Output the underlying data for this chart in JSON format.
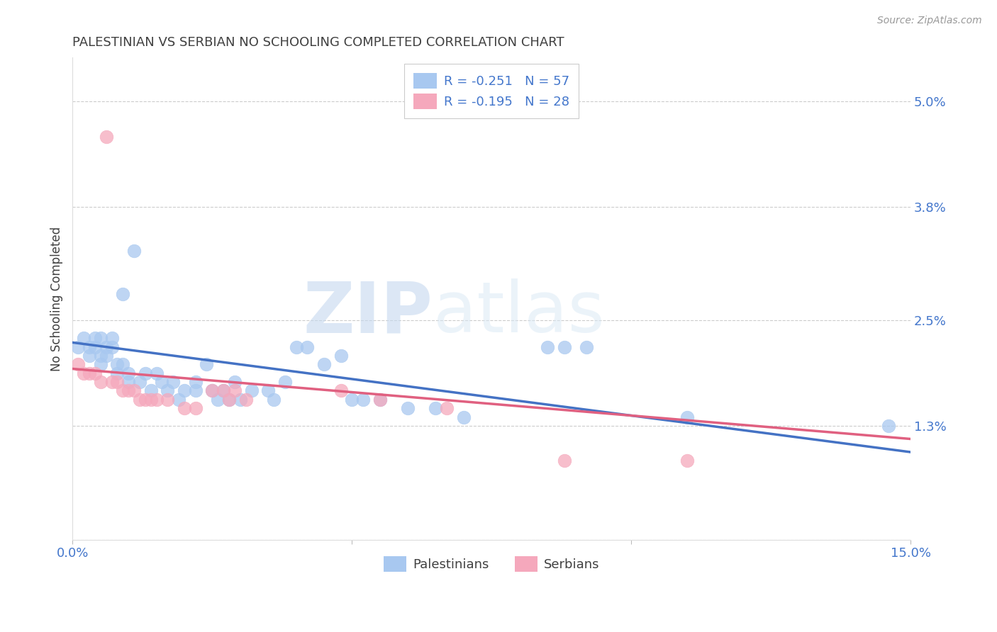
{
  "title": "PALESTINIAN VS SERBIAN NO SCHOOLING COMPLETED CORRELATION CHART",
  "source": "Source: ZipAtlas.com",
  "ylabel": "No Schooling Completed",
  "xlim": [
    0.0,
    0.15
  ],
  "ylim": [
    0.0,
    0.055
  ],
  "xticks": [
    0.0,
    0.05,
    0.1,
    0.15
  ],
  "xtick_labels": [
    "0.0%",
    "",
    "",
    "15.0%"
  ],
  "ytick_vals": [
    0.0,
    0.013,
    0.025,
    0.038,
    0.05
  ],
  "ytick_labels": [
    "",
    "1.3%",
    "2.5%",
    "3.8%",
    "5.0%"
  ],
  "background_color": "#ffffff",
  "grid_color": "#cccccc",
  "watermark_zip": "ZIP",
  "watermark_atlas": "atlas",
  "legend_R_palestinian": "R = -0.251",
  "legend_N_palestinian": "N = 57",
  "legend_R_serbian": "R = -0.195",
  "legend_N_serbian": "N = 28",
  "palestinian_color": "#a8c8f0",
  "serbian_color": "#f5a8bc",
  "line_palestinian_color": "#4472c4",
  "line_serbian_color": "#e06080",
  "title_color": "#404040",
  "axis_label_color": "#404040",
  "tick_color": "#4477cc",
  "legend_text_color": "#4477cc",
  "source_color": "#999999",
  "palestinian_scatter": [
    [
      0.001,
      0.022
    ],
    [
      0.002,
      0.023
    ],
    [
      0.003,
      0.022
    ],
    [
      0.003,
      0.021
    ],
    [
      0.004,
      0.023
    ],
    [
      0.004,
      0.022
    ],
    [
      0.005,
      0.023
    ],
    [
      0.005,
      0.021
    ],
    [
      0.005,
      0.02
    ],
    [
      0.006,
      0.022
    ],
    [
      0.006,
      0.021
    ],
    [
      0.007,
      0.023
    ],
    [
      0.007,
      0.022
    ],
    [
      0.008,
      0.02
    ],
    [
      0.008,
      0.019
    ],
    [
      0.009,
      0.028
    ],
    [
      0.009,
      0.02
    ],
    [
      0.01,
      0.019
    ],
    [
      0.01,
      0.018
    ],
    [
      0.011,
      0.033
    ],
    [
      0.012,
      0.018
    ],
    [
      0.013,
      0.019
    ],
    [
      0.014,
      0.017
    ],
    [
      0.015,
      0.019
    ],
    [
      0.016,
      0.018
    ],
    [
      0.017,
      0.017
    ],
    [
      0.018,
      0.018
    ],
    [
      0.019,
      0.016
    ],
    [
      0.02,
      0.017
    ],
    [
      0.022,
      0.018
    ],
    [
      0.022,
      0.017
    ],
    [
      0.024,
      0.02
    ],
    [
      0.025,
      0.017
    ],
    [
      0.026,
      0.016
    ],
    [
      0.027,
      0.017
    ],
    [
      0.028,
      0.016
    ],
    [
      0.029,
      0.018
    ],
    [
      0.03,
      0.016
    ],
    [
      0.032,
      0.017
    ],
    [
      0.035,
      0.017
    ],
    [
      0.036,
      0.016
    ],
    [
      0.038,
      0.018
    ],
    [
      0.04,
      0.022
    ],
    [
      0.042,
      0.022
    ],
    [
      0.045,
      0.02
    ],
    [
      0.048,
      0.021
    ],
    [
      0.05,
      0.016
    ],
    [
      0.052,
      0.016
    ],
    [
      0.055,
      0.016
    ],
    [
      0.06,
      0.015
    ],
    [
      0.065,
      0.015
    ],
    [
      0.07,
      0.014
    ],
    [
      0.085,
      0.022
    ],
    [
      0.088,
      0.022
    ],
    [
      0.092,
      0.022
    ],
    [
      0.11,
      0.014
    ],
    [
      0.146,
      0.013
    ]
  ],
  "serbian_scatter": [
    [
      0.001,
      0.02
    ],
    [
      0.002,
      0.019
    ],
    [
      0.003,
      0.019
    ],
    [
      0.004,
      0.019
    ],
    [
      0.005,
      0.018
    ],
    [
      0.006,
      0.046
    ],
    [
      0.007,
      0.018
    ],
    [
      0.008,
      0.018
    ],
    [
      0.009,
      0.017
    ],
    [
      0.01,
      0.017
    ],
    [
      0.011,
      0.017
    ],
    [
      0.012,
      0.016
    ],
    [
      0.013,
      0.016
    ],
    [
      0.014,
      0.016
    ],
    [
      0.015,
      0.016
    ],
    [
      0.017,
      0.016
    ],
    [
      0.02,
      0.015
    ],
    [
      0.022,
      0.015
    ],
    [
      0.025,
      0.017
    ],
    [
      0.027,
      0.017
    ],
    [
      0.028,
      0.016
    ],
    [
      0.029,
      0.017
    ],
    [
      0.031,
      0.016
    ],
    [
      0.048,
      0.017
    ],
    [
      0.055,
      0.016
    ],
    [
      0.067,
      0.015
    ],
    [
      0.088,
      0.009
    ],
    [
      0.11,
      0.009
    ]
  ],
  "palestinian_line": [
    [
      0.0,
      0.0225
    ],
    [
      0.15,
      0.01
    ]
  ],
  "serbian_line": [
    [
      0.0,
      0.0195
    ],
    [
      0.15,
      0.0115
    ]
  ]
}
